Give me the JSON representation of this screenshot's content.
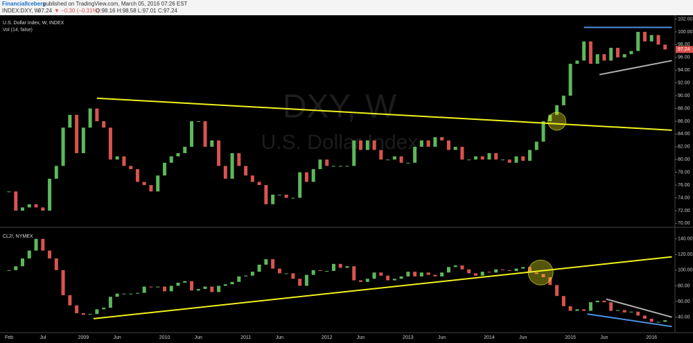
{
  "header": {
    "publisher": "FinancialIceberg",
    "published": "published on TradingView.com, March 05, 2016 07:26 EST",
    "symbol": "INDEX:DXY, W",
    "last": "97.24",
    "change": "▼ −0.30 (−0.31%)",
    "ohlc": "O:98.16 H:98.58 L:97.01 C:97.24"
  },
  "chart_data": [
    {
      "type": "candlestick",
      "title": "U.S. Dollar Index, W, INDEX",
      "subtitle": "Vol (14, false)",
      "watermark": [
        "DXY, W",
        "U.S. Dollar Index"
      ],
      "up_color": "#5cb85c",
      "down_color": "#d9534f",
      "ylim": [
        69.5,
        102.6
      ],
      "yticks": [
        {
          "value": 70,
          "label": "70.00"
        },
        {
          "value": 72,
          "label": "72.00"
        },
        {
          "value": 74,
          "label": "74.00"
        },
        {
          "value": 76,
          "label": "76.00"
        },
        {
          "value": 78,
          "label": "78.00"
        },
        {
          "value": 80,
          "label": "80.00"
        },
        {
          "value": 82,
          "label": "82.00"
        },
        {
          "value": 84,
          "label": "84.00"
        },
        {
          "value": 86,
          "label": "86.00"
        },
        {
          "value": 88,
          "label": "88.00"
        },
        {
          "value": 90,
          "label": "90.00"
        },
        {
          "value": 92,
          "label": "92.00"
        },
        {
          "value": 94,
          "label": "94.00"
        },
        {
          "value": 96,
          "label": "96.00"
        },
        {
          "value": 98,
          "label": "98.00"
        },
        {
          "value": 100,
          "label": "100.00"
        },
        {
          "value": 102,
          "label": "102.00"
        }
      ],
      "price_label": {
        "value": 97.24,
        "label": "97.24"
      },
      "values": [
        75,
        72,
        72.5,
        73,
        72.5,
        72,
        77,
        79,
        85,
        87,
        81,
        85,
        88,
        86,
        85,
        80,
        80.5,
        79,
        78.5,
        76.5,
        76,
        75,
        77.5,
        79.5,
        80.5,
        81,
        82,
        86,
        86,
        82,
        83,
        79,
        77,
        81,
        79,
        77.5,
        76.5,
        76,
        73,
        74.5,
        74.5,
        74,
        74,
        78,
        76.5,
        78.5,
        80,
        79,
        79,
        79,
        79,
        83,
        81.5,
        83,
        81.5,
        80,
        80,
        80.5,
        79.5,
        79.5,
        82,
        83,
        82,
        83.5,
        83,
        81.5,
        82,
        80,
        80,
        80.5,
        80,
        81,
        80,
        80,
        79.5,
        80.5,
        79.8,
        81.5,
        82.8,
        86,
        87,
        88.5,
        90,
        95,
        95.5,
        98.5,
        95,
        96.5,
        95.5,
        97.5,
        96,
        96.5,
        97,
        100,
        98.5,
        99.5,
        98,
        97.24
      ],
      "trendlines": [
        {
          "color": "#f2f21f",
          "points": [
            [
              13,
              89.6
            ],
            [
              98,
              84.6
            ]
          ]
        },
        {
          "color": "#4a90e2",
          "points": [
            [
              85,
              100.7
            ],
            [
              98,
              100.7
            ]
          ]
        },
        {
          "color": "#b0b0b0",
          "points": [
            [
              87.3,
              93.3
            ],
            [
              98,
              95.5
            ]
          ]
        }
      ],
      "circles": [
        {
          "x": 81,
          "y": 86,
          "color": "#f2f21f"
        }
      ]
    },
    {
      "type": "candlestick",
      "title": "CL2!, NYMEX",
      "up_color": "#5cb85c",
      "down_color": "#d9534f",
      "ylim": [
        22,
        153
      ],
      "yticks": [
        {
          "value": 40,
          "label": "40.00"
        },
        {
          "value": 60,
          "label": "60.00"
        },
        {
          "value": 80,
          "label": "80.00"
        },
        {
          "value": 100,
          "label": "100.00"
        },
        {
          "value": 120,
          "label": "120.00"
        },
        {
          "value": 140,
          "label": "140.00"
        }
      ],
      "categories": [
        "Feb",
        null,
        null,
        null,
        null,
        "Jul",
        null,
        null,
        null,
        null,
        null,
        "2009",
        null,
        null,
        null,
        null,
        "Jun",
        null,
        null,
        null,
        null,
        null,
        null,
        "2010",
        null,
        null,
        null,
        null,
        "Jun",
        null,
        null,
        null,
        null,
        null,
        null,
        "2011",
        null,
        null,
        null,
        null,
        "Jun",
        null,
        null,
        null,
        null,
        null,
        null,
        "2012",
        null,
        null,
        null,
        null,
        "Jun",
        null,
        null,
        null,
        null,
        null,
        null,
        "2013",
        null,
        null,
        null,
        null,
        "Jun",
        null,
        null,
        null,
        null,
        null,
        null,
        "2014",
        null,
        null,
        null,
        null,
        "Jun",
        null,
        null,
        null,
        null,
        null,
        null,
        "2015",
        null,
        null,
        null,
        null,
        "Jun",
        null,
        null,
        null,
        null,
        null,
        null,
        "2016",
        null,
        null
      ],
      "values": [
        100,
        105,
        115,
        125,
        140,
        125,
        115,
        100,
        68,
        55,
        45,
        43,
        44,
        50,
        52,
        66,
        70,
        70,
        70,
        71,
        79,
        78,
        79,
        73,
        80,
        84,
        86,
        74,
        76,
        79,
        72,
        80,
        82,
        85,
        92,
        93,
        98,
        107,
        114,
        102,
        96,
        96,
        89,
        80,
        94,
        100,
        99,
        99,
        108,
        103,
        105,
        87,
        85,
        89,
        97,
        93,
        87,
        89,
        92,
        98,
        92,
        97,
        94,
        92,
        97,
        104,
        106,
        101,
        96,
        93,
        98,
        97,
        101,
        100,
        99,
        102,
        104,
        97,
        95,
        91,
        81,
        67,
        54,
        48,
        50,
        48,
        59,
        61,
        59,
        48,
        49,
        46,
        47,
        42,
        38,
        34,
        34,
        36
      ],
      "trendlines": [
        {
          "color": "#f2f21f",
          "points": [
            [
              12.5,
              38
            ],
            [
              98,
              117
            ]
          ]
        },
        {
          "color": "#b0b0b0",
          "points": [
            [
              88.3,
              63
            ],
            [
              98,
              40
            ]
          ]
        },
        {
          "color": "#4a90e2",
          "points": [
            [
              85.5,
              44
            ],
            [
              98,
              28
            ]
          ]
        }
      ],
      "circles": [
        {
          "x": 78.6,
          "y": 97,
          "color": "#f2f21f"
        }
      ]
    }
  ]
}
